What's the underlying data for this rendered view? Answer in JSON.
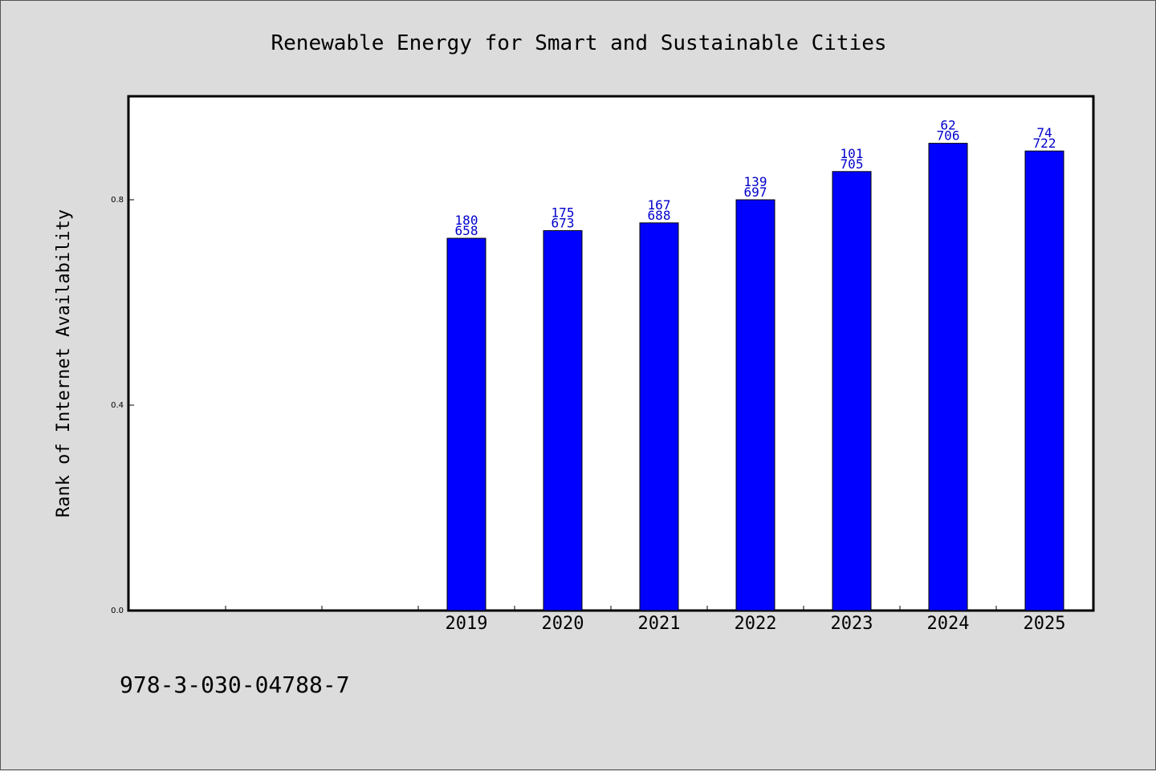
{
  "chart_data": {
    "type": "bar",
    "title": "Renewable Energy for Smart and Sustainable Cities",
    "xlabel": "",
    "ylabel": "Rank of Internet Availability",
    "categories": [
      "",
      "",
      "",
      "2019",
      "2020",
      "2021",
      "2022",
      "2023",
      "2024",
      "2025"
    ],
    "values": [
      null,
      null,
      null,
      0.725,
      0.74,
      0.755,
      0.8,
      0.855,
      0.91,
      0.895
    ],
    "data_labels_top": [
      "",
      "",
      "",
      "180",
      "175",
      "167",
      "139",
      "101",
      "62",
      "74"
    ],
    "data_labels_bottom": [
      "",
      "",
      "",
      "658",
      "673",
      "688",
      "697",
      "705",
      "706",
      "722"
    ],
    "ylim": [
      0,
      1.0
    ],
    "yticks": [
      0.0,
      0.4,
      0.8
    ],
    "ytick_labels": [
      "0.0",
      "0.4",
      "0.8"
    ],
    "grid": false,
    "colors": {
      "bar": "#0000ff",
      "label": "#0000cc",
      "plot_bg": "#ffffff",
      "page_bg": "#dcdcdc"
    }
  },
  "footer": {
    "isbn": "978-3-030-04788-7"
  }
}
